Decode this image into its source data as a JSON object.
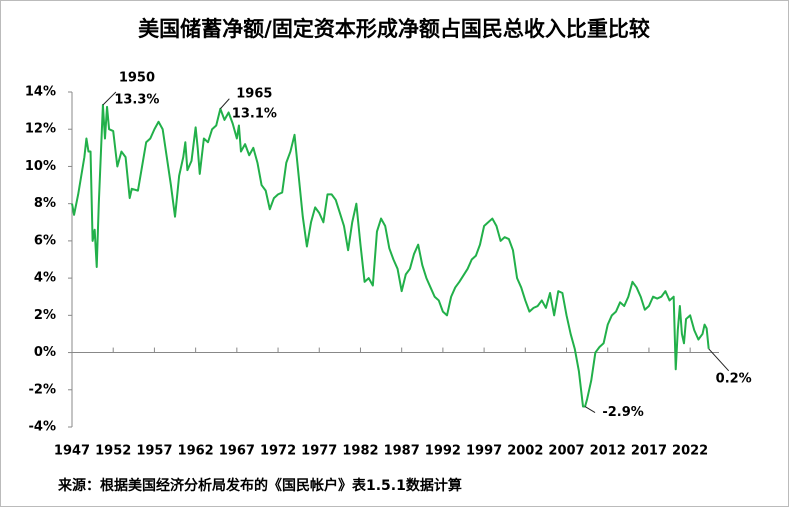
{
  "chart_data": {
    "type": "line",
    "title": "美国储蓄净额/固定资本形成净额占国民总收入比重比较",
    "source": "来源：根据美国经济分析局发布的《国民帐户》表1.5.1数据计算",
    "xlim": [
      1947,
      2025.5
    ],
    "xticks": [
      1947,
      1952,
      1957,
      1962,
      1967,
      1972,
      1977,
      1982,
      1987,
      1992,
      1997,
      2002,
      2007,
      2012,
      2017,
      2022
    ],
    "ylim": [
      -4,
      14
    ],
    "yticks": [
      {
        "value": -4,
        "label": "-4%"
      },
      {
        "value": -2,
        "label": "-2%"
      },
      {
        "value": 0,
        "label": "0%"
      },
      {
        "value": 2,
        "label": "2%"
      },
      {
        "value": 4,
        "label": "4%"
      },
      {
        "value": 6,
        "label": "6%"
      },
      {
        "value": 8,
        "label": "8%"
      },
      {
        "value": 10,
        "label": "10%"
      },
      {
        "value": 12,
        "label": "12%"
      },
      {
        "value": 14,
        "label": "14%"
      }
    ],
    "series": [
      {
        "color": "#22b04a",
        "x": [
          1947,
          1947.25,
          1947.75,
          1948.5,
          1948.75,
          1949,
          1949.25,
          1949.5,
          1949.75,
          1950,
          1950.25,
          1950.75,
          1951,
          1951.25,
          1951.5,
          1952,
          1952.5,
          1953,
          1953.5,
          1954,
          1954.25,
          1955,
          1955.5,
          1956,
          1956.5,
          1957,
          1957.5,
          1958,
          1958.5,
          1959,
          1959.5,
          1960,
          1960.5,
          1960.75,
          1961,
          1961.5,
          1962,
          1962.25,
          1962.5,
          1963,
          1963.5,
          1964,
          1964.5,
          1965,
          1965.5,
          1966,
          1966.5,
          1967,
          1967.25,
          1967.5,
          1968,
          1968.5,
          1969,
          1969.5,
          1970,
          1970.5,
          1971,
          1971.5,
          1972,
          1972.5,
          1973,
          1973.5,
          1974,
          1974.5,
          1975,
          1975.5,
          1976,
          1976.5,
          1977,
          1977.5,
          1978,
          1978.5,
          1979,
          1979.5,
          1980,
          1980.5,
          1981,
          1981.5,
          1982,
          1982.5,
          1983,
          1983.5,
          1984,
          1984.5,
          1985,
          1985.5,
          1986,
          1986.5,
          1987,
          1987.5,
          1988,
          1988.5,
          1989,
          1989.5,
          1990,
          1990.5,
          1991,
          1991.5,
          1992,
          1992.5,
          1993,
          1993.5,
          1994,
          1995,
          1995.5,
          1996,
          1996.5,
          1997,
          1997.5,
          1998,
          1998.5,
          1999,
          1999.5,
          2000,
          2000.5,
          2001,
          2001.5,
          2002,
          2002.5,
          2003,
          2003.5,
          2004,
          2004.5,
          2005,
          2005.5,
          2006,
          2006.5,
          2007,
          2007.5,
          2008,
          2008.5,
          2009,
          2009.25,
          2009.5,
          2010,
          2010.5,
          2011,
          2011.5,
          2012,
          2012.5,
          2013,
          2013.5,
          2014,
          2014.5,
          2015,
          2015.5,
          2016,
          2016.5,
          2017,
          2017.5,
          2018,
          2018.5,
          2019,
          2019.5,
          2020,
          2020.25,
          2020.5,
          2020.75,
          2021,
          2021.25,
          2021.5,
          2022,
          2022.5,
          2023,
          2023.5,
          2023.75,
          2024,
          2024.25
        ],
        "values": [
          8.0,
          7.4,
          8.5,
          10.5,
          11.5,
          10.8,
          10.8,
          6.0,
          6.6,
          4.6,
          8.0,
          13.3,
          11.5,
          13.2,
          12.0,
          11.9,
          10.0,
          10.8,
          10.5,
          8.3,
          8.8,
          8.7,
          10.0,
          11.3,
          11.5,
          12.0,
          12.4,
          12.0,
          10.5,
          9.0,
          7.3,
          9.5,
          10.5,
          11.3,
          9.8,
          10.3,
          12.1,
          11.0,
          9.6,
          11.5,
          11.3,
          12.0,
          12.2,
          13.1,
          12.5,
          12.9,
          12.3,
          11.5,
          12.2,
          10.8,
          11.2,
          10.6,
          11.0,
          10.2,
          9.0,
          8.7,
          7.7,
          8.3,
          8.5,
          8.6,
          10.2,
          10.8,
          11.7,
          9.5,
          7.3,
          5.7,
          7.0,
          7.8,
          7.5,
          7.0,
          8.5,
          8.5,
          8.2,
          7.5,
          6.8,
          5.5,
          7.0,
          8.0,
          5.8,
          3.8,
          4.0,
          3.6,
          6.5,
          7.2,
          6.8,
          5.6,
          5.0,
          4.5,
          3.3,
          4.2,
          4.5,
          5.3,
          5.8,
          4.7,
          4.0,
          3.5,
          3.0,
          2.8,
          2.2,
          2.0,
          3.0,
          3.5,
          3.8,
          4.5,
          5.0,
          5.2,
          5.8,
          6.8,
          7.0,
          7.2,
          6.8,
          6.0,
          6.2,
          6.1,
          5.5,
          4.0,
          3.5,
          2.8,
          2.2,
          2.4,
          2.5,
          2.8,
          2.4,
          3.2,
          2.0,
          3.3,
          3.2,
          2.0,
          1.0,
          0.2,
          -1.0,
          -2.9,
          -2.9,
          -2.5,
          -1.5,
          0,
          0.3,
          0.5,
          1.5,
          2.0,
          2.2,
          2.7,
          2.5,
          3.0,
          3.8,
          3.5,
          3.0,
          2.3,
          2.5,
          3.0,
          2.9,
          3.0,
          3.3,
          2.8,
          3.0,
          -0.9,
          1.2,
          2.5,
          1.0,
          0.5,
          1.8,
          2.0,
          1.2,
          0.7,
          1.0,
          1.5,
          1.3,
          0.2
        ]
      }
    ],
    "annotations": [
      {
        "label": "1950",
        "value_label": "13.3%",
        "x": 1950.75,
        "y": 13.3
      },
      {
        "label": "1965",
        "value_label": "13.1%",
        "x": 1965,
        "y": 13.1
      },
      {
        "value_label": "-2.9%",
        "x": 2009.25,
        "y": -2.9
      },
      {
        "value_label": "0.2%",
        "x": 2024.25,
        "y": 0.2
      }
    ]
  }
}
